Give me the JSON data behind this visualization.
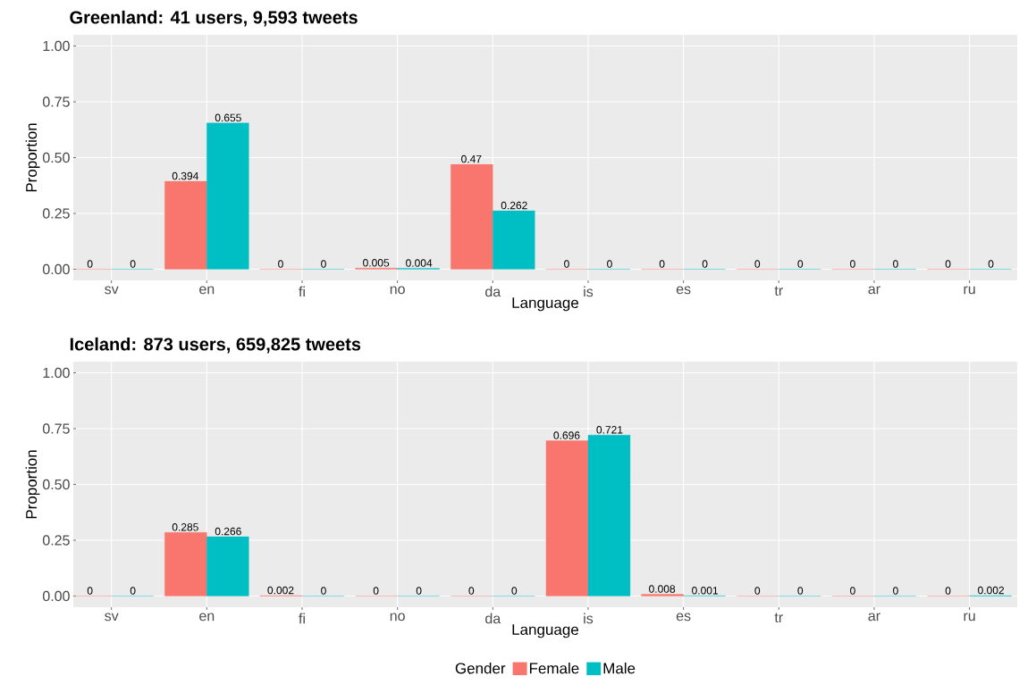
{
  "chart_data": [
    {
      "type": "bar",
      "title": "Greenland: 41 users, 9,593 tweets",
      "xlabel": "Language",
      "ylabel": "Proportion",
      "categories": [
        "sv",
        "en",
        "fi",
        "no",
        "da",
        "is",
        "es",
        "tr",
        "ar",
        "ru"
      ],
      "series": [
        {
          "color": "#F8766D",
          "values": [
            0,
            0.394,
            0,
            0.005,
            0.47,
            0,
            0,
            0,
            0,
            0
          ],
          "value_labels": [
            "0",
            "0.394",
            "0",
            "0.005",
            "0.47",
            "0",
            "0",
            "0",
            "0",
            "0"
          ]
        },
        {
          "color": "#00BFC4",
          "values": [
            0,
            0.655,
            0,
            0.004,
            0.262,
            0,
            0,
            0,
            0,
            0
          ],
          "value_labels": [
            "0",
            "0.655",
            "0",
            "0.004",
            "0.262",
            "0",
            "0",
            "0",
            "0",
            "0"
          ]
        }
      ],
      "ylim": [
        -0.05,
        1.05
      ],
      "yticks": [
        {
          "value": 0,
          "label": "0.00"
        },
        {
          "value": 0.25,
          "label": "0.25"
        },
        {
          "value": 0.5,
          "label": "0.50"
        },
        {
          "value": 0.75,
          "label": "0.75"
        },
        {
          "value": 1,
          "label": "1.00"
        }
      ],
      "grid": true
    },
    {
      "type": "bar",
      "title": "Iceland: 873 users, 659,825 tweets",
      "xlabel": "Language",
      "ylabel": "Proportion",
      "categories": [
        "sv",
        "en",
        "fi",
        "no",
        "da",
        "is",
        "es",
        "tr",
        "ar",
        "ru"
      ],
      "series": [
        {
          "name": "Female",
          "color": "#F8766D",
          "values": [
            0,
            0.285,
            0.002,
            0,
            0,
            0.696,
            0.008,
            0,
            0,
            0
          ],
          "value_labels": [
            "0",
            "0.285",
            "0.002",
            "0",
            "0",
            "0.696",
            "0.008",
            "0",
            "0",
            "0"
          ]
        },
        {
          "name": "Male",
          "color": "#00BFC4",
          "values": [
            0,
            0.266,
            0,
            0,
            0,
            0.721,
            0.001,
            0,
            0,
            0.002
          ],
          "value_labels": [
            "0",
            "0.266",
            "0",
            "0",
            "0",
            "0.721",
            "0.001",
            "0",
            "0",
            "0.002"
          ]
        }
      ],
      "ylim": [
        -0.05,
        1.05
      ],
      "yticks": [
        {
          "value": 0,
          "label": "0.00"
        },
        {
          "value": 0.25,
          "label": "0.25"
        },
        {
          "value": 0.5,
          "label": "0.50"
        },
        {
          "value": 0.75,
          "label": "0.75"
        },
        {
          "value": 1,
          "label": "1.00"
        }
      ],
      "grid": true,
      "legend": "bottom",
      "legend_title": "Gender"
    }
  ]
}
